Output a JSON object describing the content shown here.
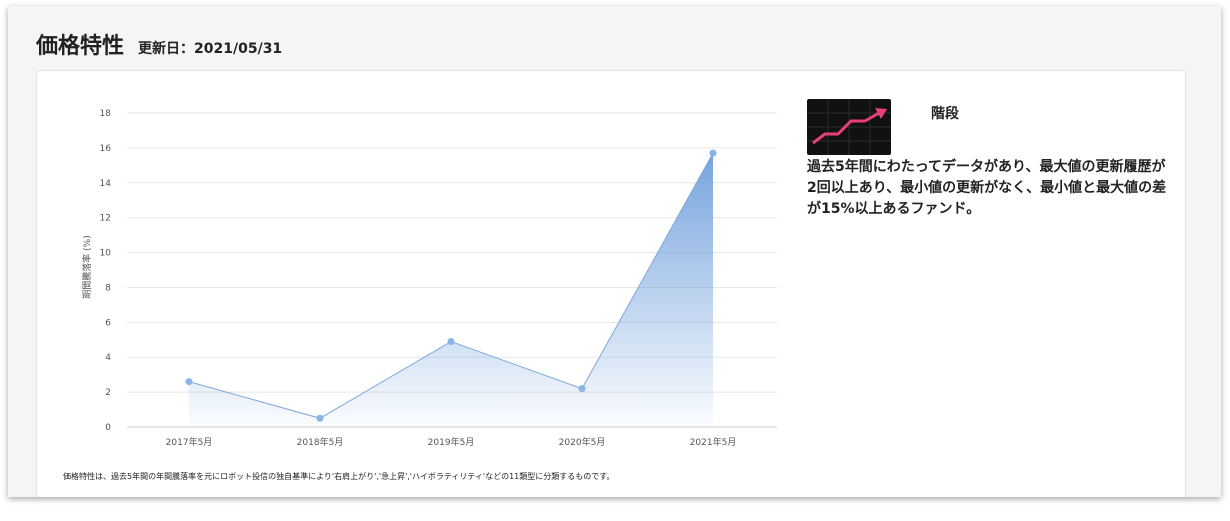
{
  "header": {
    "title": "価格特性",
    "updated": "更新日：2021/05/31"
  },
  "panel": {
    "type_label": "階段",
    "thumbnail_icon": "stair-step-chart-icon",
    "description": "過去5年間にわたってデータがあり、最大値の更新履歴が2回以上あり、最小値の更新がなく、最小値と最大値の差が15%以上あるファンド。"
  },
  "footnote": "価格特性は、過去5年間の年間騰落率を元にロボット投信の独自基準により'右肩上がり','急上昇','ハイボラティリティ'などの11類型に分類するものです。",
  "colors": {
    "line": "#7fa8dc",
    "point": "#8ab3e6",
    "area_top": "#7ea9e1",
    "grid": "#e6e6e6",
    "thumb_line": "#e8407a"
  },
  "chart_data": {
    "type": "area",
    "categories": [
      "2017年5月",
      "2018年5月",
      "2019年5月",
      "2020年5月",
      "2021年5月"
    ],
    "values": [
      2.6,
      0.5,
      4.9,
      2.2,
      15.7
    ],
    "ylabel": "期間騰落率 (%)",
    "ylim": [
      0,
      18
    ],
    "yticks": [
      "0",
      "2",
      "4",
      "6",
      "8",
      "10",
      "12",
      "14",
      "16",
      "18"
    ],
    "grid": true,
    "legend": "none"
  }
}
